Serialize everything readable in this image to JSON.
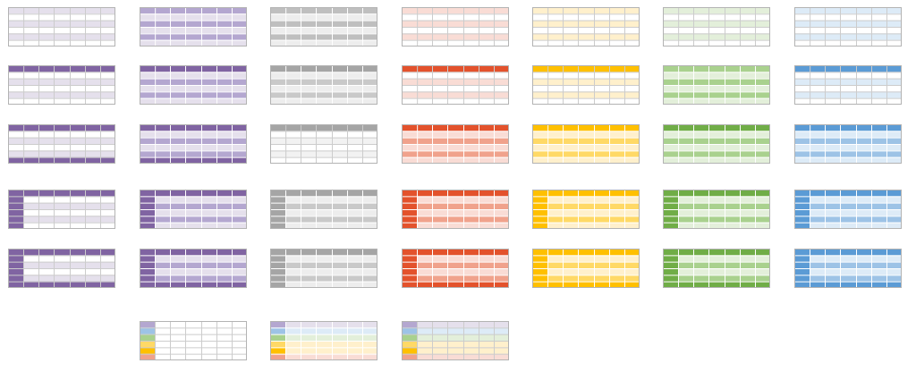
{
  "gallery": {
    "rows": [
      [
        {
          "style": "light-banded",
          "head": "#e5e0ec",
          "band": "#e5e0ec",
          "body": "#ffffff",
          "grid": "#cccccc",
          "border": "#b3b3b3"
        },
        {
          "style": "medium-banded",
          "head": "#b4a7d0",
          "band": "#b4a7d0",
          "body": "#e5e0ec",
          "grid": "#ffffff",
          "border": "#b3b3b3"
        },
        {
          "style": "medium-banded",
          "head": "#bfbfbf",
          "band": "#bfbfbf",
          "body": "#ededed",
          "grid": "#ffffff",
          "border": "#b3b3b3"
        },
        {
          "style": "light-banded",
          "head": "#f9dcd5",
          "band": "#f9dcd5",
          "body": "#ffffff",
          "grid": "#cccccc",
          "border": "#b3b3b3"
        },
        {
          "style": "light-banded",
          "head": "#fff0cc",
          "band": "#fff0cc",
          "body": "#ffffff",
          "grid": "#cccccc",
          "border": "#b3b3b3"
        },
        {
          "style": "light-banded",
          "head": "#e3efda",
          "band": "#e3efda",
          "body": "#ffffff",
          "grid": "#cccccc",
          "border": "#b3b3b3"
        },
        {
          "style": "light-banded",
          "head": "#ddebf7",
          "band": "#ddebf7",
          "body": "#ffffff",
          "grid": "#cccccc",
          "border": "#b3b3b3"
        }
      ],
      [
        {
          "style": "header-row",
          "head": "#8064a2",
          "band": "#e5e0ec",
          "body": "#ffffff",
          "grid": "#cccccc",
          "border": "#b3b3b3"
        },
        {
          "style": "header-row",
          "head": "#8064a2",
          "band": "#b4a7d0",
          "body": "#e5e0ec",
          "grid": "#ffffff",
          "border": "#b3b3b3"
        },
        {
          "style": "header-row",
          "head": "#a5a5a5",
          "band": "#c9c9c9",
          "body": "#ededed",
          "grid": "#ffffff",
          "border": "#b3b3b3"
        },
        {
          "style": "header-row",
          "head": "#e3522c",
          "band": "#f9dcd5",
          "body": "#ffffff",
          "grid": "#cccccc",
          "border": "#b3b3b3"
        },
        {
          "style": "header-row",
          "head": "#ffc000",
          "band": "#fff0cc",
          "body": "#ffffff",
          "grid": "#cccccc",
          "border": "#b3b3b3"
        },
        {
          "style": "header-row",
          "head": "#a9d18e",
          "band": "#a9d18e",
          "body": "#e3efda",
          "grid": "#ffffff",
          "border": "#b3b3b3"
        },
        {
          "style": "header-row",
          "head": "#5b9bd5",
          "band": "#ddebf7",
          "body": "#ffffff",
          "grid": "#cccccc",
          "border": "#b3b3b3"
        }
      ],
      [
        {
          "style": "header-footer",
          "head": "#8064a2",
          "band": "#e5e0ec",
          "body": "#ffffff",
          "grid": "#cccccc",
          "border": "#b3b3b3"
        },
        {
          "style": "header-footer",
          "head": "#8064a2",
          "band": "#b4a7d0",
          "body": "#e5e0ec",
          "grid": "#ffffff",
          "border": "#b3b3b3"
        },
        {
          "style": "header-row",
          "head": "#a5a5a5",
          "band": "#f2f2f2",
          "body": "#ffffff",
          "grid": "#cccccc",
          "border": "#b3b3b3"
        },
        {
          "style": "header-row",
          "head": "#e3522c",
          "band": "#f0a28c",
          "body": "#f9dcd5",
          "grid": "#ffffff",
          "border": "#b3b3b3"
        },
        {
          "style": "header-row",
          "head": "#ffc000",
          "band": "#ffd966",
          "body": "#fff0cc",
          "grid": "#ffffff",
          "border": "#b3b3b3"
        },
        {
          "style": "header-row",
          "head": "#70ad47",
          "band": "#a9d18e",
          "body": "#e3efda",
          "grid": "#ffffff",
          "border": "#b3b3b3"
        },
        {
          "style": "header-row",
          "head": "#5b9bd5",
          "band": "#9dc3e6",
          "body": "#ddebf7",
          "grid": "#ffffff",
          "border": "#b3b3b3"
        }
      ],
      [
        {
          "style": "header-first-col",
          "head": "#8064a2",
          "band": "#e5e0ec",
          "body": "#ffffff",
          "grid": "#cccccc",
          "border": "#b3b3b3"
        },
        {
          "style": "header-first-col",
          "head": "#8064a2",
          "band": "#b4a7d0",
          "body": "#e5e0ec",
          "grid": "#ffffff",
          "border": "#b3b3b3"
        },
        {
          "style": "header-first-col",
          "head": "#a5a5a5",
          "band": "#c9c9c9",
          "body": "#ededed",
          "grid": "#ffffff",
          "border": "#b3b3b3"
        },
        {
          "style": "header-first-col",
          "head": "#e3522c",
          "band": "#f0a28c",
          "body": "#f9dcd5",
          "grid": "#ffffff",
          "border": "#b3b3b3"
        },
        {
          "style": "header-first-col",
          "head": "#ffc000",
          "band": "#ffd966",
          "body": "#fff0cc",
          "grid": "#ffffff",
          "border": "#b3b3b3"
        },
        {
          "style": "header-first-col",
          "head": "#70ad47",
          "band": "#a9d18e",
          "body": "#e3efda",
          "grid": "#ffffff",
          "border": "#b3b3b3"
        },
        {
          "style": "header-first-col",
          "head": "#5b9bd5",
          "band": "#9dc3e6",
          "body": "#ddebf7",
          "grid": "#ffffff",
          "border": "#b3b3b3"
        }
      ],
      [
        {
          "style": "frame",
          "head": "#8064a2",
          "band": "#e5e0ec",
          "body": "#ffffff",
          "grid": "#cccccc",
          "border": "#b3b3b3"
        },
        {
          "style": "frame",
          "head": "#8064a2",
          "band": "#b4a7d0",
          "body": "#e5e0ec",
          "grid": "#ffffff",
          "border": "#b3b3b3"
        },
        {
          "style": "frame-top-left",
          "head": "#a5a5a5",
          "band": "#c9c9c9",
          "body": "#ededed",
          "grid": "#ffffff",
          "border": "#b3b3b3"
        },
        {
          "style": "frame",
          "head": "#e3522c",
          "band": "#f0a28c",
          "body": "#f9dcd5",
          "grid": "#ffffff",
          "border": "#b3b3b3"
        },
        {
          "style": "frame",
          "head": "#ffc000",
          "band": "#ffd966",
          "body": "#fff0cc",
          "grid": "#ffffff",
          "border": "#b3b3b3"
        },
        {
          "style": "frame",
          "head": "#70ad47",
          "band": "#a9d18e",
          "body": "#e3efda",
          "grid": "#ffffff",
          "border": "#b3b3b3"
        },
        {
          "style": "frame",
          "head": "#5b9bd5",
          "band": "#9dc3e6",
          "body": "#ddebf7",
          "grid": "#ffffff",
          "border": "#b3b3b3"
        }
      ],
      [
        null,
        {
          "style": "multicolor-first-col",
          "head": "#b4a7d0",
          "band": "#ffffff",
          "body": "#ffffff",
          "grid": "#cccccc",
          "border": "#b3b3b3",
          "col_colors": [
            "#b4a7d0",
            "#9dc3e6",
            "#a9d18e",
            "#ffd966",
            "#ffc000",
            "#f0a28c"
          ]
        },
        {
          "style": "multicolor-first-col",
          "head": "#b4a7d0",
          "band": "#ddebf7",
          "body": "#fff0cc",
          "grid": "#ffffff",
          "border": "#b3b3b3",
          "col_colors": [
            "#b4a7d0",
            "#9dc3e6",
            "#a9d18e",
            "#ffd966",
            "#ffc000",
            "#f0a28c"
          ],
          "row_colors": [
            "#e5e0ec",
            "#ddebf7",
            "#e3efda",
            "#fff0cc",
            "#fff0cc",
            "#f9dcd5"
          ]
        },
        {
          "style": "multicolor-first-col",
          "head": "#b4a7d0",
          "band": "#ddebf7",
          "body": "#fff0cc",
          "grid": "#cccccc",
          "border": "#b3b3b3",
          "col_colors": [
            "#b4a7d0",
            "#9dc3e6",
            "#a9d18e",
            "#ffd966",
            "#ffc000",
            "#f0a28c"
          ],
          "row_colors": [
            "#e5e0ec",
            "#ddebf7",
            "#e3efda",
            "#fff0cc",
            "#fff0cc",
            "#f9dcd5"
          ]
        },
        null,
        null,
        null
      ]
    ]
  }
}
